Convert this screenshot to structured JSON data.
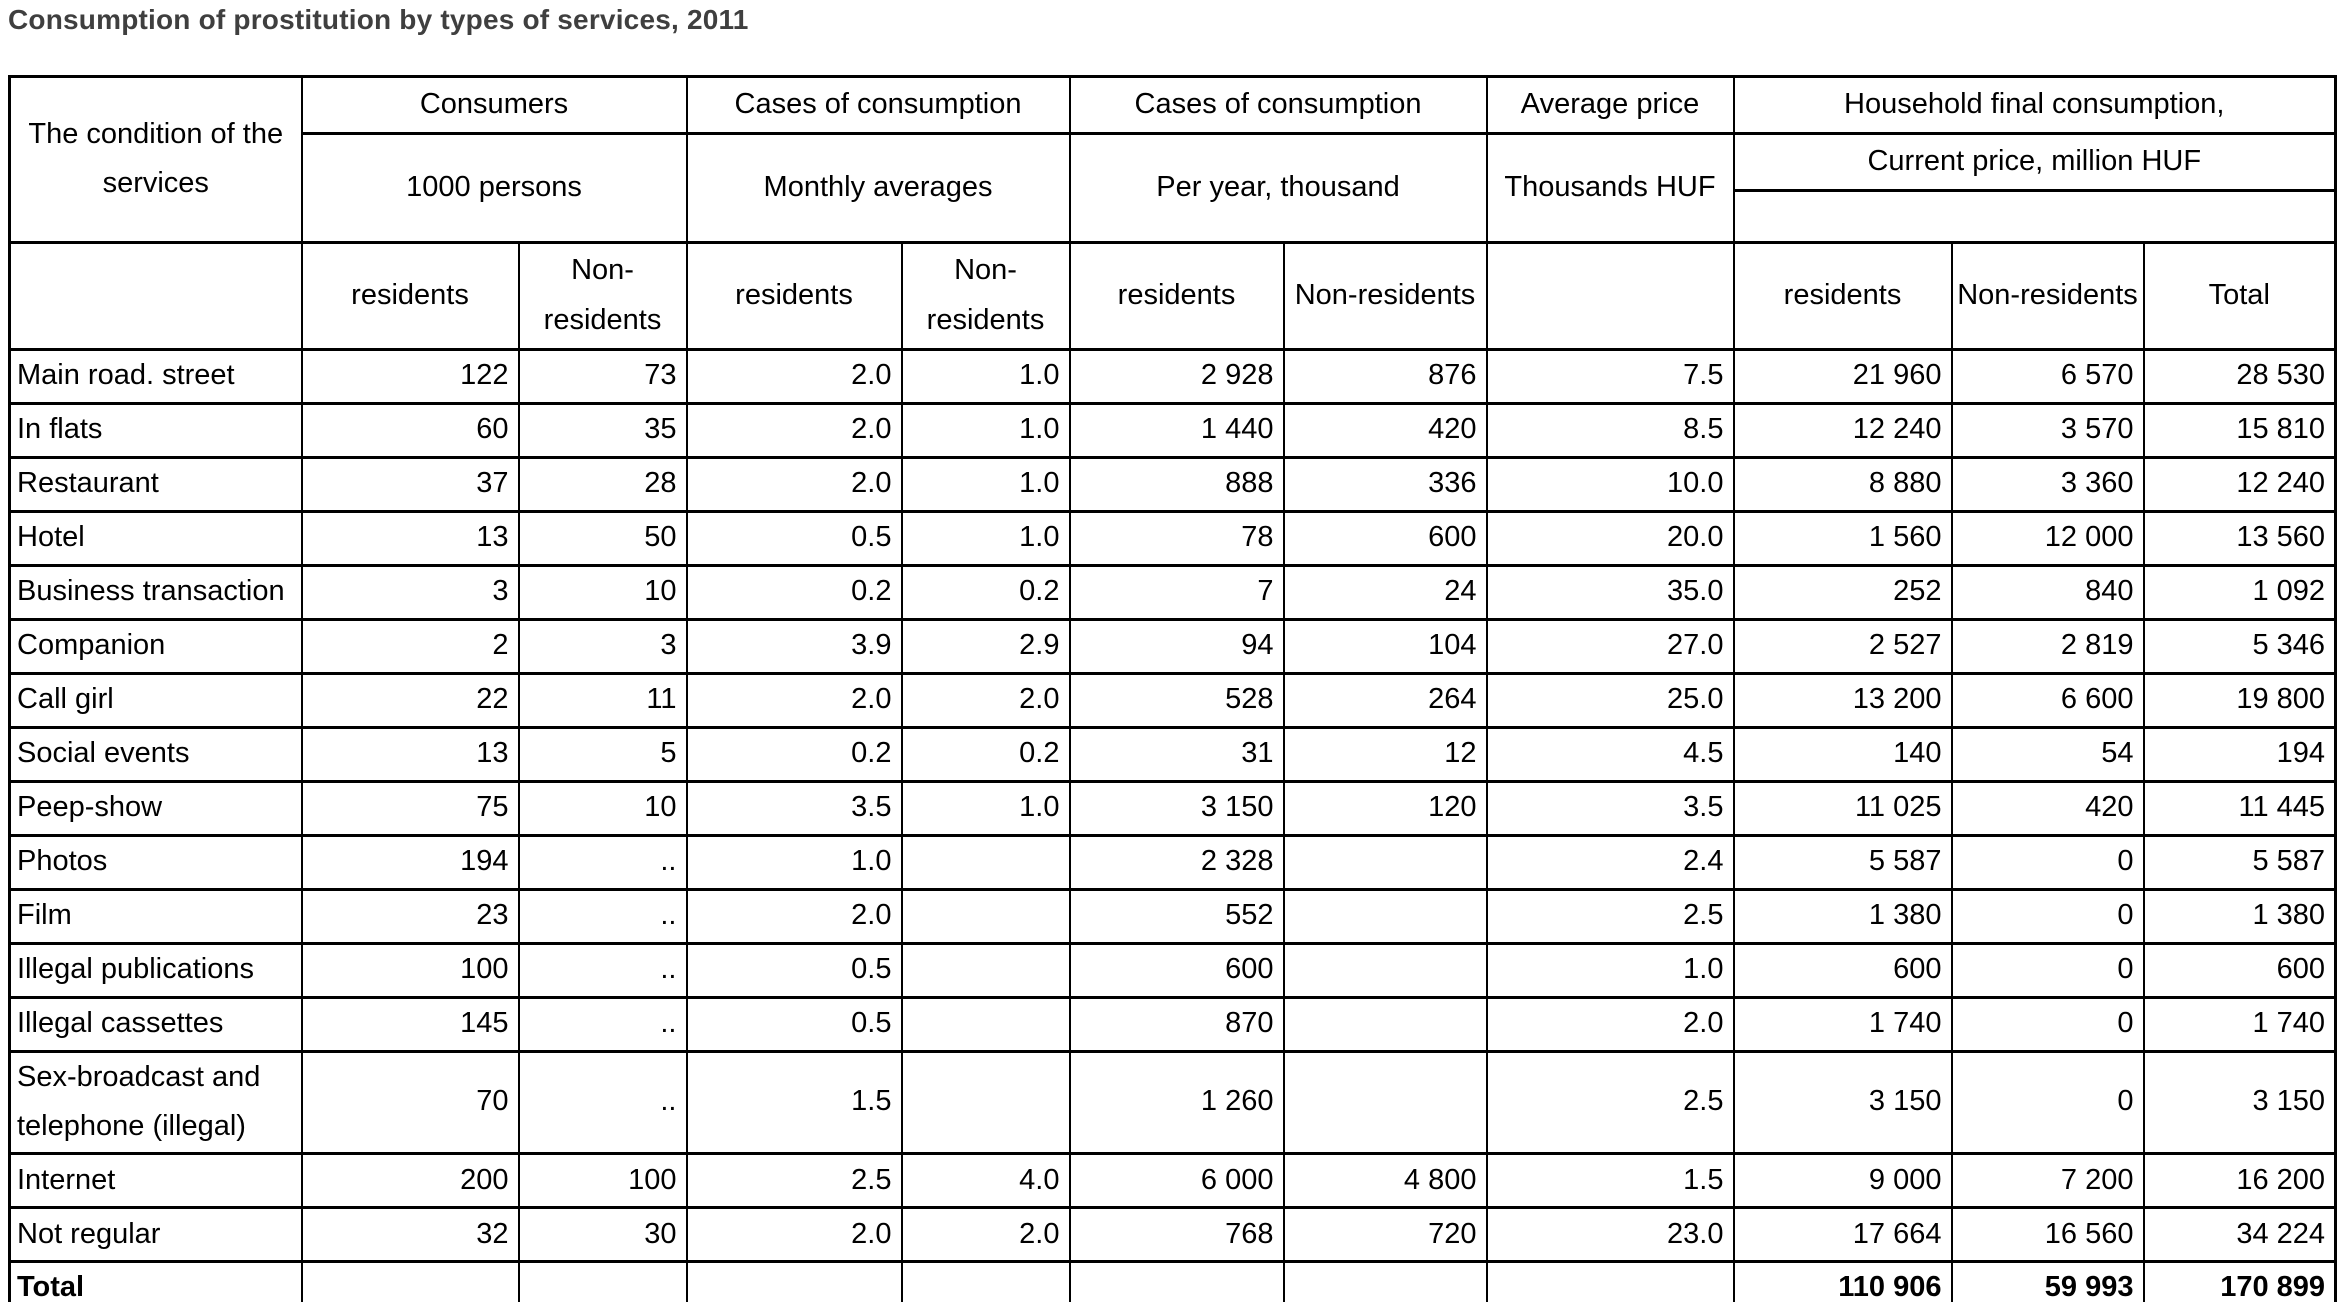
{
  "page_title": "Consumption of prostitution by types of services, 2011",
  "table": {
    "corner_header": "The condition of the services",
    "groups": [
      {
        "title": "Consumers",
        "subtitle": "1000 persons",
        "columns": [
          "residents",
          "Non-residents"
        ]
      },
      {
        "title": "Cases of consumption",
        "subtitle": "Monthly averages",
        "columns": [
          "residents",
          "Non-residents"
        ]
      },
      {
        "title": "Cases of consumption",
        "subtitle": "Per year, thousand",
        "columns": [
          "residents",
          "Non-residents"
        ]
      },
      {
        "title": "Average price",
        "subtitle": "Thousands HUF",
        "columns": []
      },
      {
        "title": "Household final consumption,",
        "subtitle": "Current price, million HUF",
        "columns": [
          "residents",
          "Non-residents",
          "Total"
        ]
      }
    ],
    "rows": [
      {
        "label": "Main road. street",
        "values": [
          "122",
          "73",
          "2.0",
          "1.0",
          "2 928",
          "876",
          "7.5",
          "21 960",
          "6 570",
          "28 530"
        ],
        "bold": false
      },
      {
        "label": "In flats",
        "values": [
          "60",
          "35",
          "2.0",
          "1.0",
          "1 440",
          "420",
          "8.5",
          "12 240",
          "3 570",
          "15 810"
        ],
        "bold": false
      },
      {
        "label": "Restaurant",
        "values": [
          "37",
          "28",
          "2.0",
          "1.0",
          "888",
          "336",
          "10.0",
          "8 880",
          "3 360",
          "12 240"
        ],
        "bold": false
      },
      {
        "label": "Hotel",
        "values": [
          "13",
          "50",
          "0.5",
          "1.0",
          "78",
          "600",
          "20.0",
          "1 560",
          "12 000",
          "13 560"
        ],
        "bold": false
      },
      {
        "label": "Business transaction",
        "values": [
          "3",
          "10",
          "0.2",
          "0.2",
          "7",
          "24",
          "35.0",
          "252",
          "840",
          "1 092"
        ],
        "bold": false
      },
      {
        "label": "Companion",
        "values": [
          "2",
          "3",
          "3.9",
          "2.9",
          "94",
          "104",
          "27.0",
          "2 527",
          "2 819",
          "5 346"
        ],
        "bold": false
      },
      {
        "label": "Call girl",
        "values": [
          "22",
          "11",
          "2.0",
          "2.0",
          "528",
          "264",
          "25.0",
          "13 200",
          "6 600",
          "19 800"
        ],
        "bold": false
      },
      {
        "label": "Social events",
        "values": [
          "13",
          "5",
          "0.2",
          "0.2",
          "31",
          "12",
          "4.5",
          "140",
          "54",
          "194"
        ],
        "bold": false
      },
      {
        "label": "Peep-show",
        "values": [
          "75",
          "10",
          "3.5",
          "1.0",
          "3 150",
          "120",
          "3.5",
          "11 025",
          "420",
          "11 445"
        ],
        "bold": false
      },
      {
        "label": "Photos",
        "values": [
          "194",
          "..",
          "1.0",
          "",
          "2 328",
          "",
          "2.4",
          "5 587",
          "0",
          "5 587"
        ],
        "bold": false
      },
      {
        "label": "Film",
        "values": [
          "23",
          "..",
          "2.0",
          "",
          "552",
          "",
          "2.5",
          "1 380",
          "0",
          "1 380"
        ],
        "bold": false
      },
      {
        "label": "Illegal publications",
        "values": [
          "100",
          "..",
          "0.5",
          "",
          "600",
          "",
          "1.0",
          "600",
          "0",
          "600"
        ],
        "bold": false
      },
      {
        "label": "Illegal cassettes",
        "values": [
          "145",
          "..",
          "0.5",
          "",
          "870",
          "",
          "2.0",
          "1 740",
          "0",
          "1 740"
        ],
        "bold": false
      },
      {
        "label": "Sex-broadcast and telephone (illegal)",
        "values": [
          "70",
          "..",
          "1.5",
          "",
          "1 260",
          "",
          "2.5",
          "3 150",
          "0",
          "3 150"
        ],
        "bold": false
      },
      {
        "label": "Internet",
        "values": [
          "200",
          "100",
          "2.5",
          "4.0",
          "6 000",
          "4 800",
          "1.5",
          "9 000",
          "7 200",
          "16 200"
        ],
        "bold": false
      },
      {
        "label": "Not regular",
        "values": [
          "32",
          "30",
          "2.0",
          "2.0",
          "768",
          "720",
          "23.0",
          "17 664",
          "16 560",
          "34 224"
        ],
        "bold": false
      },
      {
        "label": "Total",
        "values": [
          "",
          "",
          "",
          "",
          "",
          "",
          "",
          "110 906",
          "59 993",
          "170 899"
        ],
        "bold": true
      }
    ]
  }
}
